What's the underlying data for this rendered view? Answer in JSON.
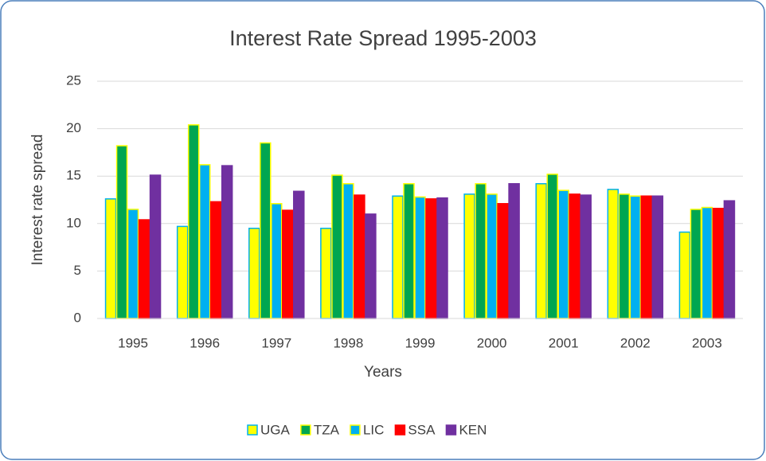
{
  "chart_data": {
    "type": "bar",
    "title": "Interest Rate Spread 1995-2003",
    "xlabel": "Years",
    "ylabel": "Interest rate spread",
    "categories": [
      "1995",
      "1996",
      "1997",
      "1998",
      "1999",
      "2000",
      "2001",
      "2002",
      "2003"
    ],
    "series": [
      {
        "name": "UGA",
        "color": "#ffff00",
        "edgecolor": "#00b0f0",
        "values": [
          12.6,
          9.7,
          9.5,
          9.5,
          12.9,
          13.1,
          14.2,
          13.6,
          9.1
        ]
      },
      {
        "name": "TZA",
        "color": "#00a651",
        "edgecolor": "#ffff00",
        "values": [
          18.2,
          20.4,
          18.5,
          15.1,
          14.2,
          14.2,
          15.2,
          13.1,
          11.5
        ]
      },
      {
        "name": "LIC",
        "color": "#00b0f0",
        "edgecolor": "#ffff00",
        "values": [
          11.5,
          16.2,
          12.1,
          14.2,
          12.8,
          13.1,
          13.5,
          12.9,
          11.7
        ]
      },
      {
        "name": "SSA",
        "color": "#ff0000",
        "edgecolor": "#ff0000",
        "values": [
          10.4,
          12.3,
          11.4,
          13.0,
          12.6,
          12.1,
          13.1,
          12.9,
          11.6
        ]
      },
      {
        "name": "KEN",
        "color": "#7030a0",
        "edgecolor": "#7030a0",
        "values": [
          15.1,
          16.1,
          13.4,
          11.0,
          12.7,
          14.2,
          13.0,
          12.9,
          12.4
        ]
      }
    ],
    "ylim": [
      0,
      25
    ],
    "yticks": [
      0,
      5,
      10,
      15,
      20,
      25
    ],
    "grid": true,
    "legend": "bottom"
  }
}
